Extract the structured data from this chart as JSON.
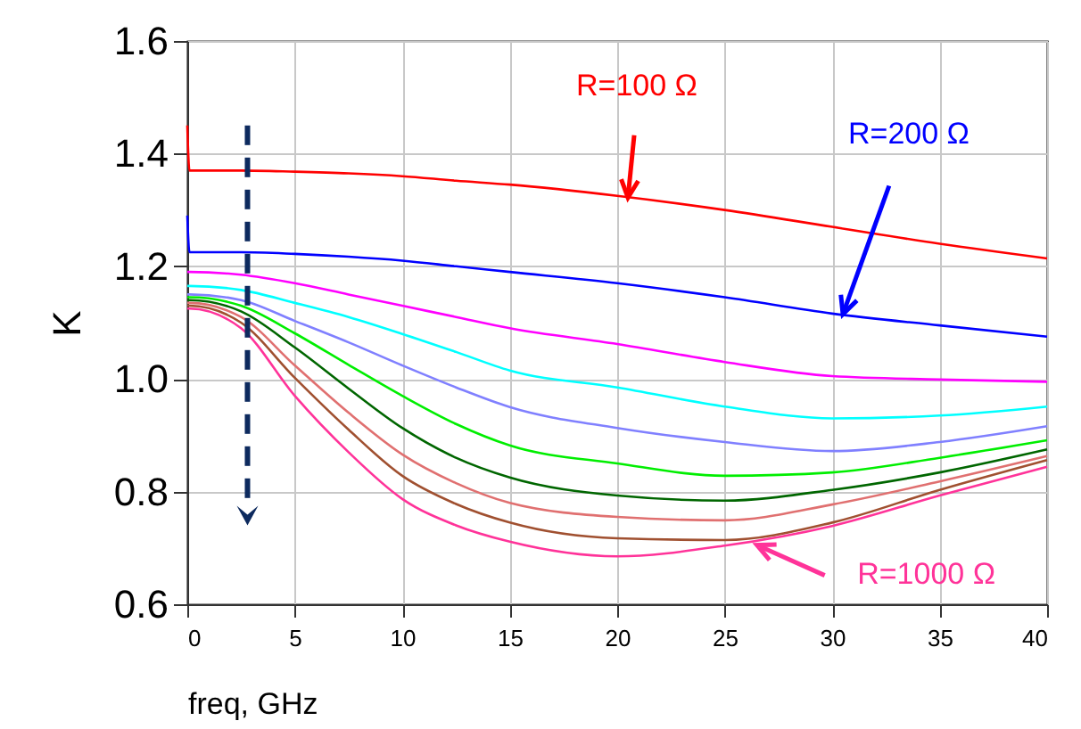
{
  "chart_data": {
    "type": "line",
    "xlabel": "freq, GHz",
    "ylabel": "K",
    "x": [
      0,
      0.1,
      2.5,
      5,
      7.5,
      10,
      12.5,
      15,
      20,
      25,
      30,
      35,
      40
    ],
    "series": [
      {
        "color": "#ff0000",
        "values": [
          1.45,
          1.37,
          1.37,
          1.368,
          1.365,
          1.36,
          1.352,
          1.345,
          1.325,
          1.3,
          1.27,
          1.24,
          1.214
        ]
      },
      {
        "color": "#0000ff",
        "values": [
          1.29,
          1.225,
          1.225,
          1.222,
          1.217,
          1.21,
          1.2,
          1.19,
          1.17,
          1.145,
          1.116,
          1.095,
          1.075
        ]
      },
      {
        "color": "#ff00ff",
        "values": [
          1.19,
          1.19,
          1.185,
          1.17,
          1.15,
          1.13,
          1.11,
          1.09,
          1.062,
          1.03,
          1.005,
          0.999,
          0.995
        ]
      },
      {
        "color": "#00ffff",
        "values": [
          1.165,
          1.165,
          1.158,
          1.135,
          1.11,
          1.08,
          1.048,
          1.015,
          0.985,
          0.951,
          0.93,
          0.935,
          0.951
        ]
      },
      {
        "color": "#8080ff",
        "values": [
          1.15,
          1.15,
          1.14,
          1.103,
          1.065,
          1.024,
          0.985,
          0.95,
          0.913,
          0.888,
          0.872,
          0.888,
          0.916
        ]
      },
      {
        "color": "#00ee00",
        "values": [
          1.145,
          1.145,
          1.13,
          1.081,
          1.025,
          0.97,
          0.92,
          0.882,
          0.85,
          0.828,
          0.834,
          0.86,
          0.891
        ]
      },
      {
        "color": "#006600",
        "values": [
          1.14,
          1.14,
          1.12,
          1.056,
          0.983,
          0.913,
          0.86,
          0.825,
          0.793,
          0.784,
          0.803,
          0.834,
          0.875
        ]
      },
      {
        "color": "#e07070",
        "values": [
          1.135,
          1.135,
          1.11,
          1.024,
          0.94,
          0.866,
          0.815,
          0.78,
          0.755,
          0.749,
          0.777,
          0.818,
          0.863
        ]
      },
      {
        "color": "#a05030",
        "values": [
          1.13,
          1.13,
          1.1,
          1.002,
          0.91,
          0.828,
          0.778,
          0.745,
          0.717,
          0.714,
          0.745,
          0.803,
          0.856
        ]
      },
      {
        "color": "#ff3399",
        "values": [
          1.125,
          1.125,
          1.09,
          0.97,
          0.87,
          0.787,
          0.74,
          0.711,
          0.685,
          0.704,
          0.739,
          0.793,
          0.844
        ]
      }
    ],
    "annotations": [
      {
        "text": "R=100 Ω",
        "x": 20.5,
        "y": 1.322
      },
      {
        "text": "R=200 Ω",
        "x": 30.5,
        "y": 1.115
      },
      {
        "text": "R=1000 Ω",
        "x": 26.5,
        "y": 0.705
      }
    ],
    "xlim": [
      0,
      40
    ],
    "xticks": [
      0,
      5,
      10,
      15,
      20,
      25,
      30,
      35,
      40
    ],
    "ylim": [
      0.6,
      1.6
    ],
    "yticks": [
      {
        "value": 0.6,
        "label": "0.6"
      },
      {
        "value": 0.8,
        "label": "0.8"
      },
      {
        "value": 1,
        "label": "1.0"
      },
      {
        "value": 1.2,
        "label": "1.2"
      },
      {
        "value": 1.4,
        "label": "1.4"
      },
      {
        "value": 1.6,
        "label": "1.6"
      }
    ],
    "grid": true,
    "marker": "none",
    "line_style": "solid"
  }
}
